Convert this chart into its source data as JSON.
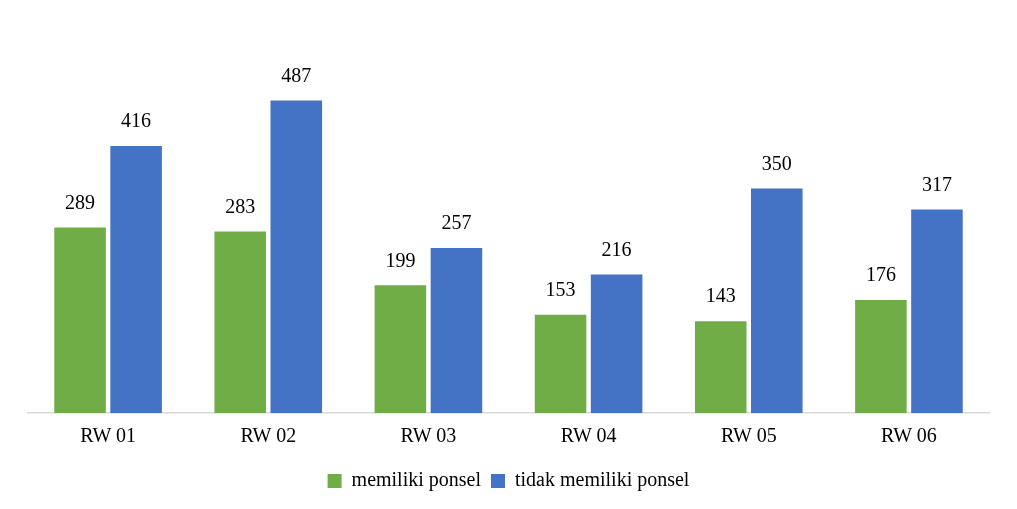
{
  "chart_data": {
    "type": "bar",
    "categories": [
      "RW 01",
      "RW 02",
      "RW 03",
      "RW 04",
      "RW 05",
      "RW 06"
    ],
    "series": [
      {
        "name": "memiliki ponsel",
        "color": "#70ad47",
        "values": [
          289,
          283,
          199,
          153,
          143,
          176
        ]
      },
      {
        "name": "tidak memiliki ponsel",
        "color": "#4472c4",
        "values": [
          416,
          487,
          257,
          216,
          350,
          317
        ]
      }
    ],
    "data_labels": true,
    "grid": false,
    "legend": "bottom"
  }
}
